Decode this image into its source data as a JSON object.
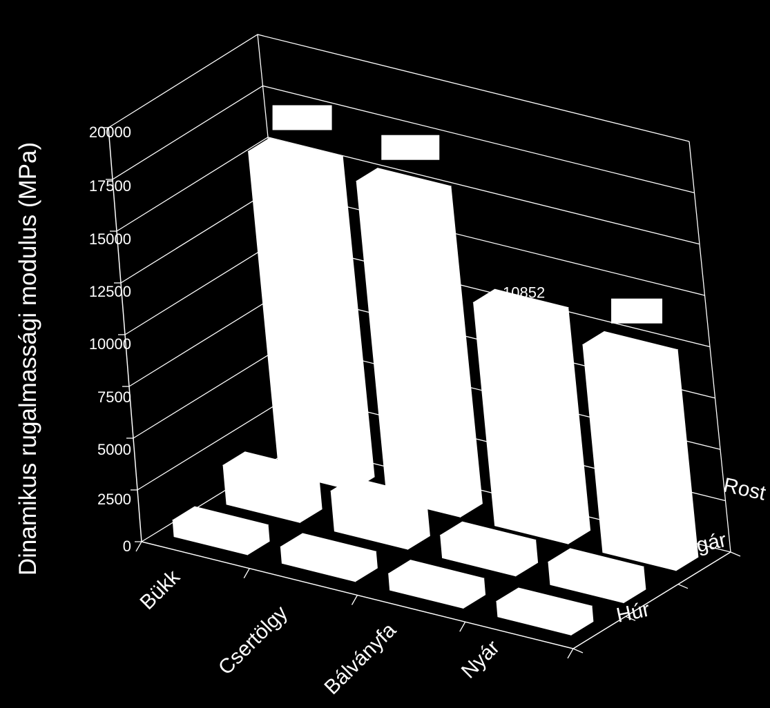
{
  "chart_data": {
    "type": "bar",
    "subtype": "3d-column",
    "title": "",
    "ylabel": "Dinamikus rugalmassági modulus (MPa)",
    "categories": [
      "Bükk",
      "Csertölgy",
      "Bálványfa",
      "Nyár"
    ],
    "depth_categories": [
      "Húr",
      "Sugár",
      "Rost"
    ],
    "yticks": [
      "0",
      "2500",
      "5000",
      "7500",
      "10000",
      "12500",
      "15000",
      "17500",
      "20000"
    ],
    "ylim": [
      0,
      20000
    ],
    "series": [
      {
        "name": "Húr",
        "values": [
          800,
          800,
          800,
          750
        ]
      },
      {
        "name": "Sugár",
        "values": [
          1900,
          1950,
          1100,
          1100
        ]
      },
      {
        "name": "Rost",
        "values": [
          15600,
          15450,
          10852,
          10100
        ]
      }
    ],
    "data_labels": [
      "",
      "",
      "10852",
      ""
    ],
    "colors": {
      "background": "#000000",
      "bars": "#ffffff",
      "grid": "#ffffff"
    }
  }
}
